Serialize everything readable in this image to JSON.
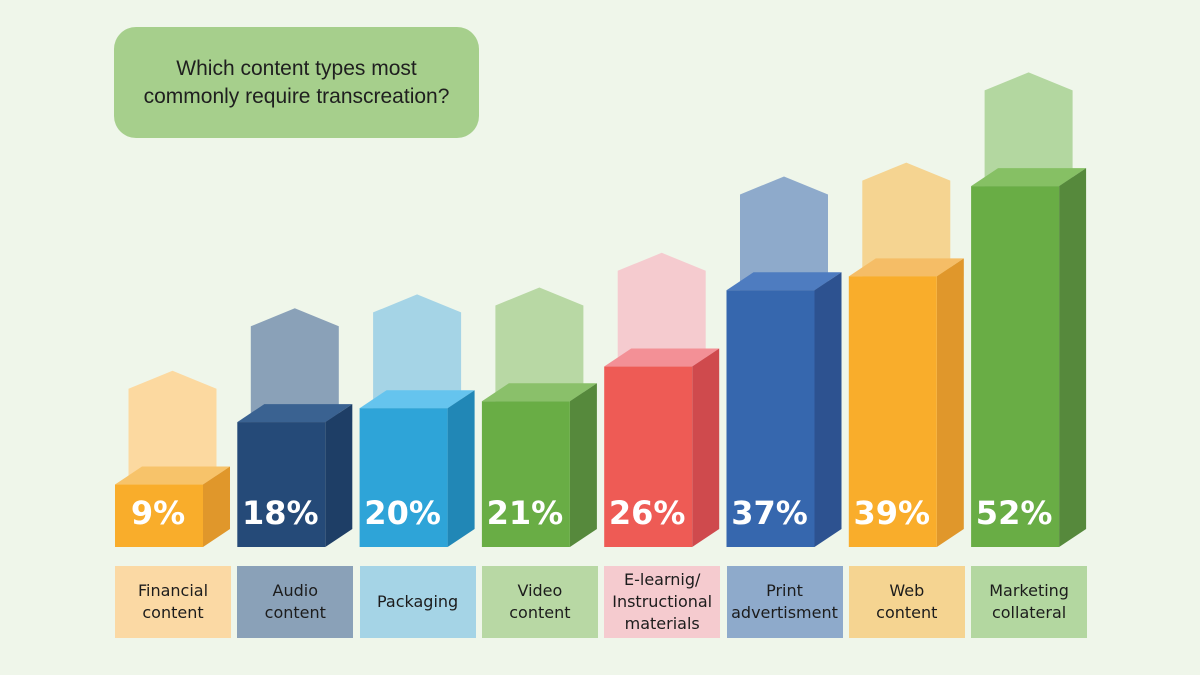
{
  "chart_data": {
    "type": "bar",
    "title_lines": [
      "Which content types most",
      "commonly require transcreation?"
    ],
    "categories": [
      [
        "Financial",
        "content"
      ],
      [
        "Audio",
        "content"
      ],
      [
        "Packaging"
      ],
      [
        "Video",
        "content"
      ],
      [
        "E-learnig/",
        "Instructional",
        "materials"
      ],
      [
        "Print",
        "advertisment"
      ],
      [
        "Web",
        "content"
      ],
      [
        "Marketing",
        "collateral"
      ]
    ],
    "values": [
      9,
      18,
      20,
      21,
      26,
      37,
      39,
      52
    ],
    "value_labels": [
      "9%",
      "18%",
      "20%",
      "21%",
      "26%",
      "37%",
      "39%",
      "52%"
    ],
    "colors": [
      {
        "front": "#f9ad2b",
        "side": "#e0972b",
        "top": "#f7c36a",
        "ghost": "#fcd9a0",
        "label_bg": "#fbd9a4"
      },
      {
        "front": "#254a78",
        "side": "#1e3e66",
        "top": "#3a6291",
        "ghost": "#8aa1b8",
        "label_bg": "#8aa1b8"
      },
      {
        "front": "#2ea4d8",
        "side": "#2187b6",
        "top": "#65c4ee",
        "ghost": "#a5d4e6",
        "label_bg": "#a5d4e6"
      },
      {
        "front": "#69ad45",
        "side": "#56893c",
        "top": "#8ac06a",
        "ghost": "#b8d8a4",
        "label_bg": "#b8d8a4"
      },
      {
        "front": "#ee5b55",
        "side": "#cf4a4d",
        "top": "#f39096",
        "ghost": "#f5cbcf",
        "label_bg": "#f5cbcf"
      },
      {
        "front": "#3667ae",
        "side": "#2d5290",
        "top": "#4e7cc0",
        "ghost": "#8eaacb",
        "label_bg": "#8eaacb"
      },
      {
        "front": "#f9ad2b",
        "side": "#e0972b",
        "top": "#f5bd66",
        "ghost": "#f5d491",
        "label_bg": "#f5d491"
      },
      {
        "front": "#69ad45",
        "side": "#56893c",
        "top": "#86c064",
        "ghost": "#b3d7a0",
        "label_bg": "#b3d7a0"
      }
    ],
    "background": "#eff6ea",
    "title_bg": "#a6cf8c"
  }
}
